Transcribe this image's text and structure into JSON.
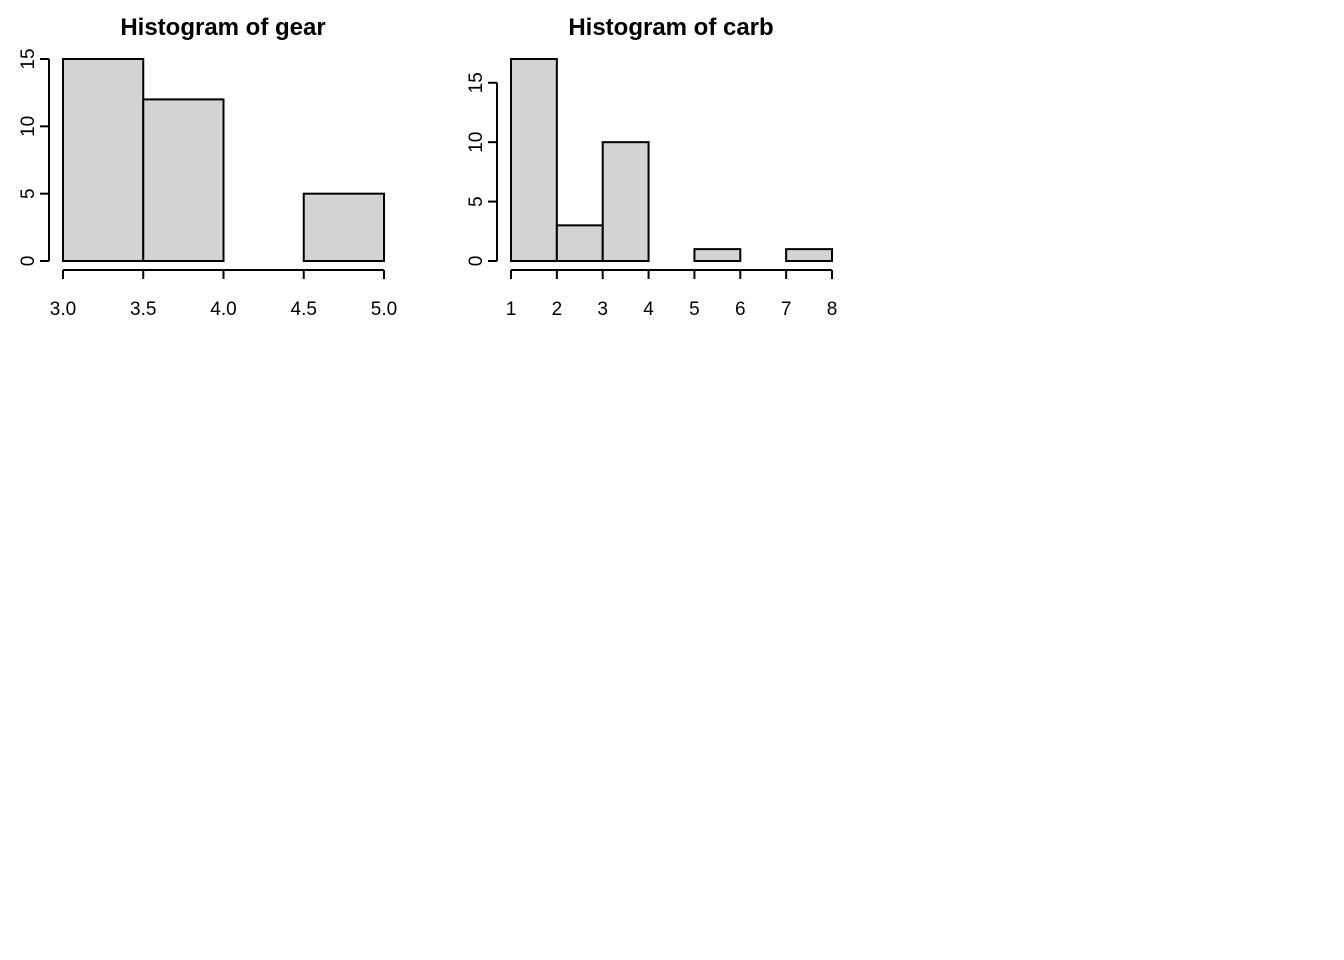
{
  "chart_data": [
    {
      "type": "bar",
      "title": "Histogram of gear",
      "xlabel": "",
      "ylabel": "",
      "bins": [
        [
          3.0,
          3.5
        ],
        [
          3.5,
          4.0
        ],
        [
          4.0,
          4.5
        ],
        [
          4.5,
          5.0
        ]
      ],
      "values": [
        15,
        12,
        0,
        5
      ],
      "xlim": [
        3.0,
        5.0
      ],
      "ylim": [
        0,
        15
      ],
      "x_ticks": [
        "3.0",
        "3.5",
        "4.0",
        "4.5",
        "5.0"
      ],
      "y_ticks": [
        "0",
        "5",
        "10",
        "15"
      ],
      "grid": false,
      "bar_color": "#d3d3d3"
    },
    {
      "type": "bar",
      "title": "Histogram of carb",
      "xlabel": "",
      "ylabel": "",
      "bins": [
        [
          1,
          2
        ],
        [
          2,
          3
        ],
        [
          3,
          4
        ],
        [
          4,
          5
        ],
        [
          5,
          6
        ],
        [
          6,
          7
        ],
        [
          7,
          8
        ]
      ],
      "values": [
        17,
        3,
        10,
        0,
        1,
        0,
        1
      ],
      "xlim": [
        1,
        8
      ],
      "ylim": [
        0,
        17
      ],
      "x_ticks": [
        "1",
        "2",
        "3",
        "4",
        "5",
        "6",
        "7",
        "8"
      ],
      "y_ticks": [
        "0",
        "5",
        "10",
        "15"
      ],
      "grid": false,
      "bar_color": "#d3d3d3"
    }
  ]
}
